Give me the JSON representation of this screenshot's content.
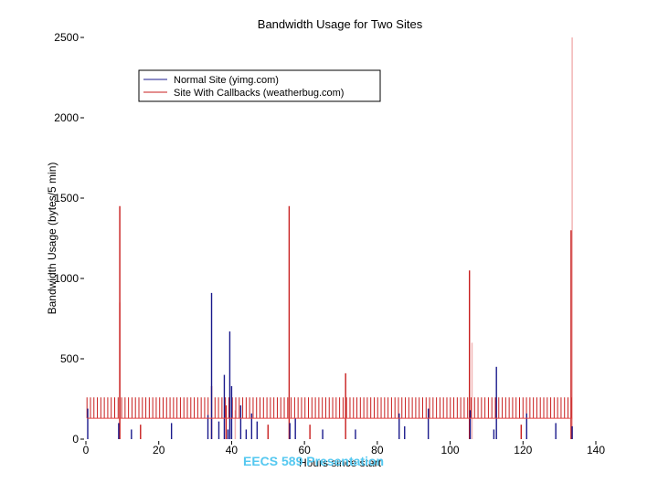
{
  "chart_data": {
    "type": "bar",
    "title": "Bandwidth Usage for Two Sites",
    "xlabel": "Hours since start",
    "ylabel": "Bandwidth Usage (bytes/5 min)",
    "xlim": [
      0,
      140
    ],
    "ylim": [
      0,
      2500
    ],
    "xticks": [
      0,
      20,
      40,
      60,
      80,
      100,
      120,
      140
    ],
    "yticks": [
      0,
      500,
      1000,
      1500,
      2000,
      2500
    ],
    "grid": false,
    "legend": "top-left",
    "colors": {
      "normal": "#1a1a8c",
      "callbacks": "#c81e1e",
      "callbacks_light": "#f2b4b4",
      "normal_light": "#c8c8f0"
    },
    "series": [
      {
        "name": "Normal Site (yimg.com)",
        "color": "#1a1a8c",
        "points": [
          [
            0.5,
            190
          ],
          [
            9,
            100
          ],
          [
            12.5,
            60
          ],
          [
            23.5,
            100
          ],
          [
            33.5,
            150
          ],
          [
            34.5,
            910
          ],
          [
            36.5,
            110
          ],
          [
            38,
            400
          ],
          [
            39,
            60
          ],
          [
            39.5,
            670
          ],
          [
            40,
            330
          ],
          [
            42.5,
            210
          ],
          [
            44,
            60
          ],
          [
            45.5,
            160
          ],
          [
            47,
            110
          ],
          [
            56,
            100
          ],
          [
            57.5,
            130
          ],
          [
            65,
            60
          ],
          [
            74,
            60
          ],
          [
            86,
            160
          ],
          [
            87.5,
            80
          ],
          [
            94,
            190
          ],
          [
            105.5,
            180
          ],
          [
            112,
            60
          ],
          [
            112.7,
            450
          ],
          [
            121,
            160
          ],
          [
            129,
            100
          ],
          [
            133.5,
            80
          ]
        ]
      },
      {
        "name": "Site With Callbacks (weatherbug.com)",
        "color": "#c81e1e",
        "baseline": 130,
        "periodic": {
          "start": 0.3,
          "step": 0.95,
          "end": 133.5,
          "value": 260
        },
        "points": [
          [
            9.3,
            1450
          ],
          [
            15,
            90
          ],
          [
            34.5,
            330
          ],
          [
            38.5,
            210
          ],
          [
            50,
            90
          ],
          [
            55.8,
            1450
          ],
          [
            61.5,
            90
          ],
          [
            71.3,
            410
          ],
          [
            105.3,
            1050
          ],
          [
            119.5,
            90
          ],
          [
            133.2,
            1300
          ]
        ],
        "light_points": [
          [
            9.3,
            850
          ],
          [
            41,
            180
          ],
          [
            106,
            600
          ],
          [
            133.5,
            2500
          ]
        ]
      }
    ]
  },
  "watermark": "EECS 589 Presentation"
}
